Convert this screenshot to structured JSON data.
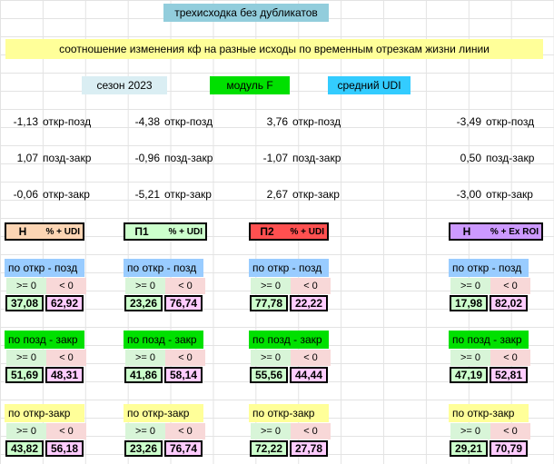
{
  "title": "трехисходка без дубликатов",
  "subtitle": "соотношение изменения кф на разные исходы по временным отрезкам жизни линии",
  "header_labels": {
    "season": "сезон 2023",
    "modul": "модуль F",
    "udi": "средний UDI"
  },
  "change_rows": [
    {
      "label": "откр-позд",
      "values": [
        "-1,13",
        "-4,38",
        "3,76",
        "-3,49"
      ]
    },
    {
      "label": "позд-закр",
      "values": [
        "1,07",
        "-0,96",
        "-1,07",
        "0,50"
      ]
    },
    {
      "label": "откр-закр",
      "values": [
        "-0,06",
        "-5,21",
        "2,67",
        "-3,00"
      ]
    }
  ],
  "columns": [
    {
      "key": "Н",
      "pct": "% + UDI",
      "color": "#fcd5b4",
      "blocks": [
        {
          "pos": "37,08",
          "neg": "62,92"
        },
        {
          "pos": "51,69",
          "neg": "48,31"
        },
        {
          "pos": "43,82",
          "neg": "56,18"
        }
      ]
    },
    {
      "key": "П1",
      "pct": "% + UDI",
      "color": "#ccffcc",
      "blocks": [
        {
          "pos": "23,26",
          "neg": "76,74"
        },
        {
          "pos": "41,86",
          "neg": "58,14"
        },
        {
          "pos": "23,26",
          "neg": "76,74"
        }
      ]
    },
    {
      "key": "П2",
      "pct": "% + UDI",
      "color": "#ff5050",
      "blocks": [
        {
          "pos": "77,78",
          "neg": "22,22"
        },
        {
          "pos": "55,56",
          "neg": "44,44"
        },
        {
          "pos": "72,22",
          "neg": "27,78"
        }
      ]
    },
    {
      "key": "Н",
      "pct": "% + Ex ROI",
      "color": "#cc99ff",
      "blocks": [
        {
          "pos": "17,98",
          "neg": "82,02"
        },
        {
          "pos": "47,19",
          "neg": "52,81"
        },
        {
          "pos": "29,21",
          "neg": "70,79"
        }
      ]
    }
  ],
  "block_labels": [
    "по откр - позд",
    "по позд - закр",
    "по откр-закр"
  ],
  "block_colors": [
    "#99ccff",
    "#00e000",
    "#ffff99"
  ],
  "sign_labels": {
    "pos": ">= 0",
    "neg": "< 0"
  },
  "sign_colors": {
    "pos": "#d8f5d8",
    "neg": "#f8d8d8",
    "val_pos": "#ccffcc",
    "val_neg": "#ffccff"
  }
}
